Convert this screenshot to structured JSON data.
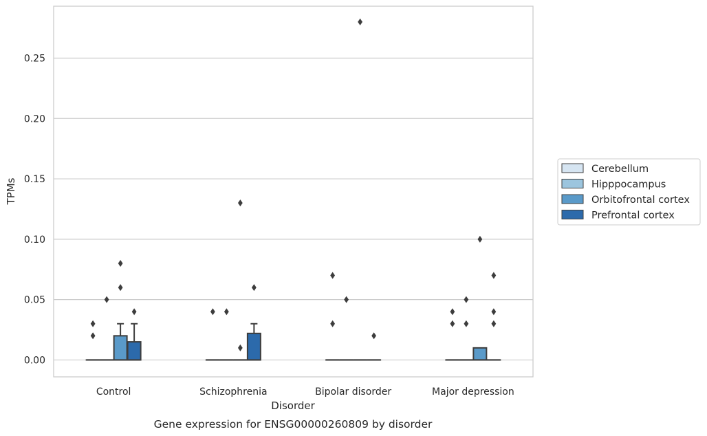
{
  "chart_data": {
    "type": "box",
    "title": "",
    "caption": "Gene expression for ENSG00000260809 by disorder",
    "xlabel": "Disorder",
    "ylabel": "TPMs",
    "ylim": [
      -0.014,
      0.293
    ],
    "yticks": [
      "0.00",
      "0.05",
      "0.10",
      "0.15",
      "0.20",
      "0.25"
    ],
    "ytick_values": [
      0,
      0.05,
      0.1,
      0.15,
      0.2,
      0.25
    ],
    "grid": "horizontal",
    "legend_position": "right",
    "categories": [
      "Control",
      "Schizophrenia",
      "Bipolar disorder",
      "Major depression"
    ],
    "series": [
      {
        "name": "Cerebellum",
        "color": "#d6e5f2",
        "boxes": [
          {
            "q1": 0,
            "median": 0,
            "q3": 0,
            "whisker_low": 0,
            "whisker_high": 0,
            "outliers": [
              0.03,
              0.02
            ]
          },
          {
            "q1": 0,
            "median": 0,
            "q3": 0,
            "whisker_low": 0,
            "whisker_high": 0,
            "outliers": [
              0.04
            ]
          },
          {
            "q1": 0,
            "median": 0,
            "q3": 0,
            "whisker_low": 0,
            "whisker_high": 0,
            "outliers": [
              0.07,
              0.03
            ]
          },
          {
            "q1": 0,
            "median": 0,
            "q3": 0,
            "whisker_low": 0,
            "whisker_high": 0,
            "outliers": [
              0.04,
              0.03
            ]
          }
        ]
      },
      {
        "name": "Hipppocampus",
        "color": "#9cc5de",
        "boxes": [
          {
            "q1": 0,
            "median": 0,
            "q3": 0,
            "whisker_low": 0,
            "whisker_high": 0,
            "outliers": [
              0.05
            ]
          },
          {
            "q1": 0,
            "median": 0,
            "q3": 0,
            "whisker_low": 0,
            "whisker_high": 0,
            "outliers": [
              0.04
            ]
          },
          {
            "q1": 0,
            "median": 0,
            "q3": 0,
            "whisker_low": 0,
            "whisker_high": 0,
            "outliers": [
              0.05
            ]
          },
          {
            "q1": 0,
            "median": 0,
            "q3": 0,
            "whisker_low": 0,
            "whisker_high": 0,
            "outliers": [
              0.03,
              0.05
            ]
          }
        ]
      },
      {
        "name": "Orbitofrontal cortex",
        "color": "#5a9ac9",
        "boxes": [
          {
            "q1": 0,
            "median": 0,
            "q3": 0.02,
            "whisker_low": 0,
            "whisker_high": 0.03,
            "outliers": [
              0.08,
              0.06
            ]
          },
          {
            "q1": 0,
            "median": 0,
            "q3": 0,
            "whisker_low": 0,
            "whisker_high": 0,
            "outliers": [
              0.13,
              0.01
            ]
          },
          {
            "q1": 0,
            "median": 0,
            "q3": 0,
            "whisker_low": 0,
            "whisker_high": 0,
            "outliers": [
              0.28
            ]
          },
          {
            "q1": 0,
            "median": 0,
            "q3": 0.01,
            "whisker_low": 0,
            "whisker_high": 0.01,
            "outliers": [
              0.1
            ]
          }
        ]
      },
      {
        "name": "Prefrontal cortex",
        "color": "#2c6aab",
        "boxes": [
          {
            "q1": 0,
            "median": 0,
            "q3": 0.015,
            "whisker_low": 0,
            "whisker_high": 0.03,
            "outliers": [
              0.04
            ]
          },
          {
            "q1": 0,
            "median": 0,
            "q3": 0.022,
            "whisker_low": 0,
            "whisker_high": 0.03,
            "outliers": [
              0.06
            ]
          },
          {
            "q1": 0,
            "median": 0,
            "q3": 0,
            "whisker_low": 0,
            "whisker_high": 0,
            "outliers": [
              0.02
            ]
          },
          {
            "q1": 0,
            "median": 0,
            "q3": 0,
            "whisker_low": 0,
            "whisker_high": 0,
            "outliers": [
              0.07,
              0.04,
              0.03
            ]
          }
        ]
      }
    ]
  }
}
